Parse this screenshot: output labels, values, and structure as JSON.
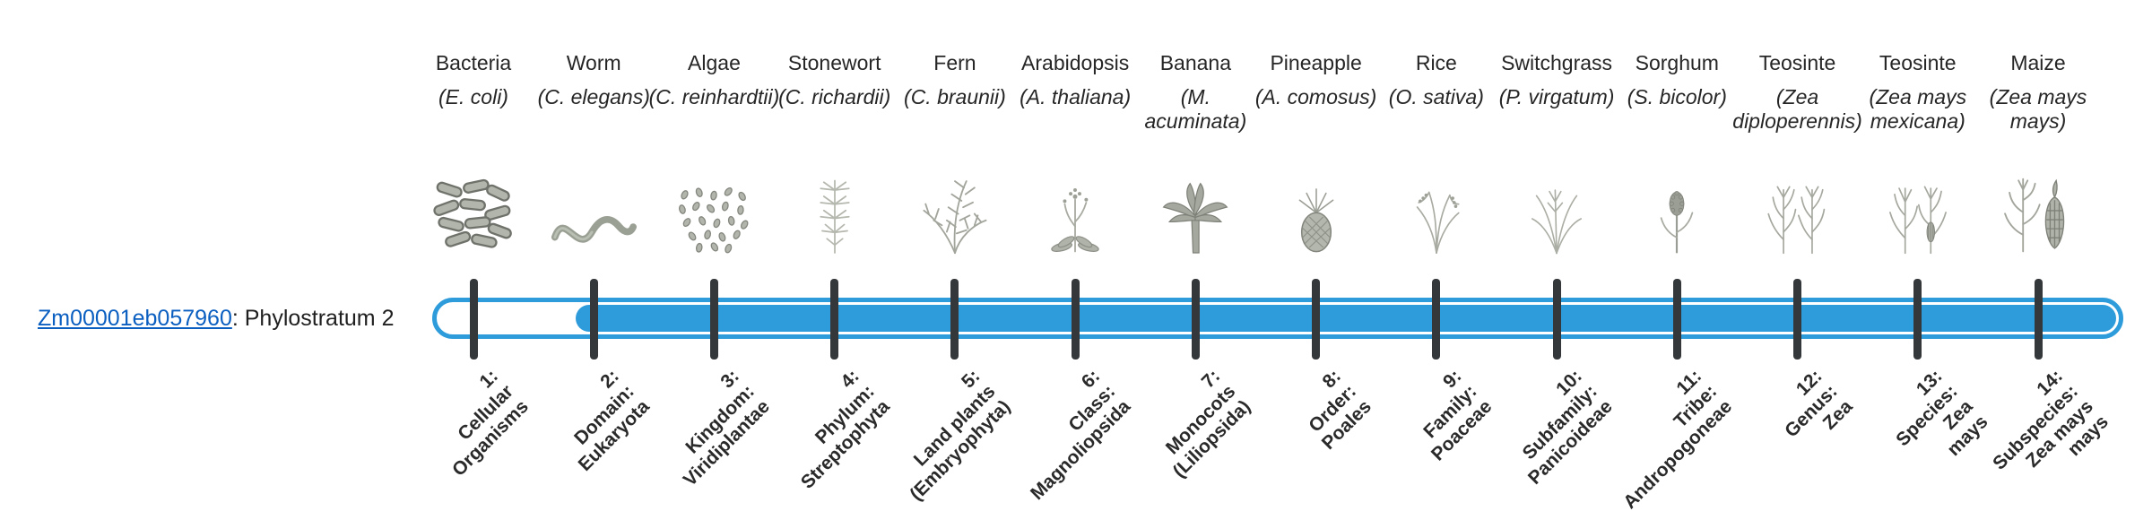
{
  "gene": {
    "id": "Zm00001eb057960",
    "suffix": ": Phylostratum 2",
    "phylostratum": "Phylostratum 2"
  },
  "bar": {
    "color": "#2E9CDB",
    "origin_stratum": 2
  },
  "strata": [
    {
      "organism": "Bacteria",
      "scientific": "(E. coli)",
      "icon": "bacteria-icon",
      "tick_label_lines": [
        "1:",
        "Cellular",
        "Organisms"
      ]
    },
    {
      "organism": "Worm",
      "scientific": "(C. elegans)",
      "icon": "worm-icon",
      "tick_label_lines": [
        "2:",
        "Domain:",
        "Eukaryota"
      ]
    },
    {
      "organism": "Algae",
      "scientific": "(C. reinhardtii)",
      "icon": "algae-icon",
      "tick_label_lines": [
        "3:",
        "Kingdom:",
        "Viridiplantae"
      ]
    },
    {
      "organism": "Stonewort",
      "scientific": "(C. richardii)",
      "icon": "stonewort-icon",
      "tick_label_lines": [
        "4:",
        "Phylum:",
        "Streptophyta"
      ]
    },
    {
      "organism": "Fern",
      "scientific": "(C. braunii)",
      "icon": "fern-icon",
      "tick_label_lines": [
        "5:",
        "Land plants",
        "(Embryophyta)"
      ]
    },
    {
      "organism": "Arabidopsis",
      "scientific": "(A. thaliana)",
      "icon": "arabidopsis-icon",
      "tick_label_lines": [
        "6:",
        "Class:",
        "Magnoliopsida"
      ]
    },
    {
      "organism": "Banana",
      "scientific": "(M. acuminata)",
      "icon": "banana-icon",
      "tick_label_lines": [
        "7:",
        "Monocots",
        "(Liliopsida)"
      ]
    },
    {
      "organism": "Pineapple",
      "scientific": "(A. comosus)",
      "icon": "pineapple-icon",
      "tick_label_lines": [
        "8:",
        "Order:",
        "Poales"
      ]
    },
    {
      "organism": "Rice",
      "scientific": "(O. sativa)",
      "icon": "rice-icon",
      "tick_label_lines": [
        "9:",
        "Family:",
        "Poaceae"
      ]
    },
    {
      "organism": "Switchgrass",
      "scientific": "(P. virgatum)",
      "icon": "switchgrass-icon",
      "tick_label_lines": [
        "10:",
        "Subfamily:",
        "Panicoideae"
      ]
    },
    {
      "organism": "Sorghum",
      "scientific": "(S. bicolor)",
      "icon": "sorghum-icon",
      "tick_label_lines": [
        "11:",
        "Tribe:",
        "Andropogoneae"
      ]
    },
    {
      "organism": "Teosinte",
      "scientific": "(Zea diploperennis)",
      "icon": "teosinte-diploperennis-icon",
      "tick_label_lines": [
        "12:",
        "Genus:",
        "Zea"
      ]
    },
    {
      "organism": "Teosinte",
      "scientific": "(Zea mays mexicana)",
      "icon": "teosinte-mexicana-icon",
      "tick_label_lines": [
        "13:",
        "Species:",
        "Zea",
        "mays"
      ]
    },
    {
      "organism": "Maize",
      "scientific": "(Zea mays mays)",
      "icon": "maize-icon",
      "tick_label_lines": [
        "14:",
        "Subspecies:",
        "Zea mays",
        "mays"
      ]
    }
  ]
}
